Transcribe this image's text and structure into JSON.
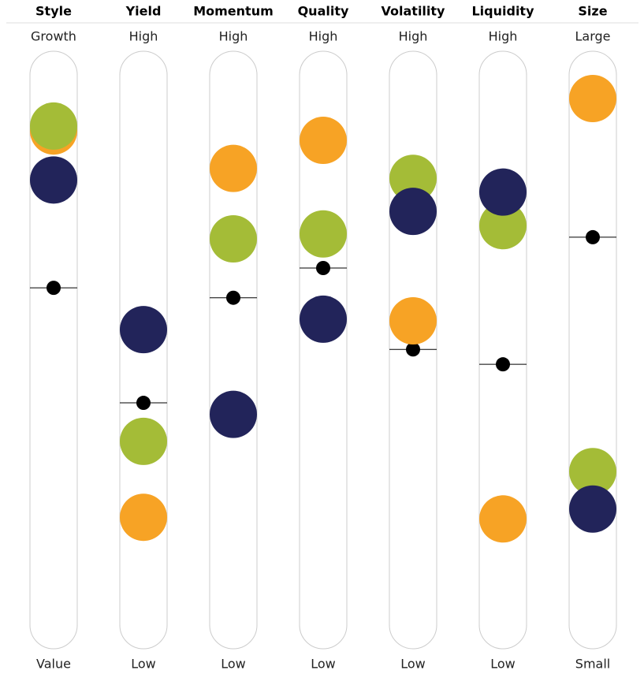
{
  "chart_data": {
    "type": "dot",
    "categories": [
      "Style",
      "Yield",
      "Momentum",
      "Quality",
      "Volatility",
      "Liquidity",
      "Size"
    ],
    "high_labels": [
      "Growth",
      "High",
      "High",
      "High",
      "High",
      "High",
      "Large"
    ],
    "low_labels": [
      "Value",
      "Low",
      "Low",
      "Low",
      "Low",
      "Low",
      "Small"
    ],
    "ylim": [
      0,
      100
    ],
    "series": [
      {
        "color": "#f7a325",
        "values": [
          89.8,
          19.6,
          83.0,
          88.1,
          55.3,
          19.3,
          95.7
        ]
      },
      {
        "color": "#a4bc37",
        "values": [
          90.7,
          33.4,
          70.2,
          71.1,
          81.2,
          72.6,
          27.9
        ]
      },
      {
        "color": "#22245a",
        "values": [
          80.9,
          53.7,
          38.3,
          55.6,
          75.2,
          78.7,
          21.1
        ]
      }
    ],
    "benchmark": {
      "color": "#000000",
      "values": [
        61.3,
        40.4,
        59.5,
        64.9,
        50.1,
        47.4,
        70.5
      ]
    }
  }
}
